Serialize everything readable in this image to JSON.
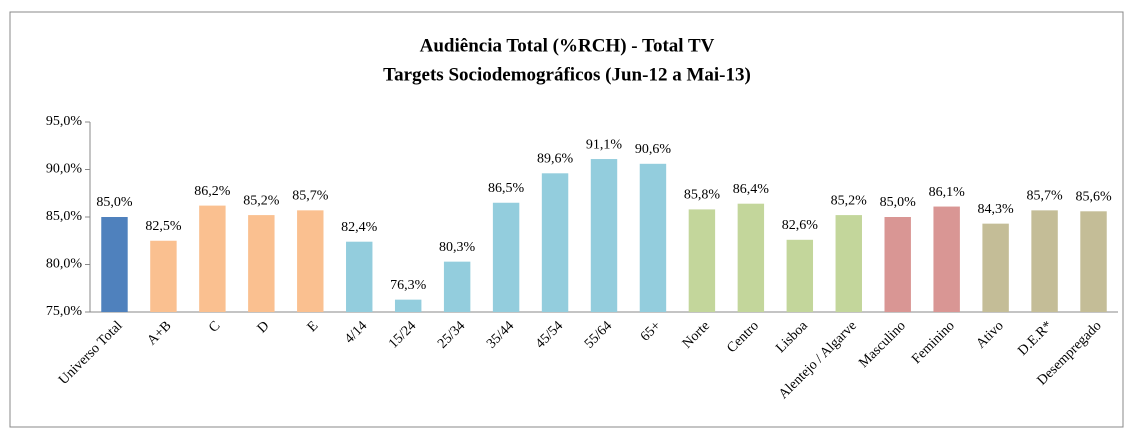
{
  "chart_data": {
    "type": "bar",
    "title": "Audiência Total (%RCH) - Total TV",
    "subtitle": "Targets Sociodemográficos  (Jun-12 a Mai-13)",
    "categories": [
      "Universo Total",
      "A+B",
      "C",
      "D",
      "E",
      "4/14",
      "15/24",
      "25/34",
      "35/44",
      "45/54",
      "55/64",
      "65+",
      "Norte",
      "Centro",
      "Lisboa",
      "Alentejo / Algarve",
      "Masculino",
      "Feminino",
      "Ativo",
      "D.E.R*",
      "Desempregado"
    ],
    "values": [
      85.0,
      82.5,
      86.2,
      85.2,
      85.7,
      82.4,
      76.3,
      80.3,
      86.5,
      89.6,
      91.1,
      90.6,
      85.8,
      86.4,
      82.6,
      85.2,
      85.0,
      86.1,
      84.3,
      85.7,
      85.6
    ],
    "value_labels": [
      "85,0%",
      "82,5%",
      "86,2%",
      "85,2%",
      "85,7%",
      "82,4%",
      "76,3%",
      "80,3%",
      "86,5%",
      "89,6%",
      "91,1%",
      "90,6%",
      "85,8%",
      "86,4%",
      "82,6%",
      "85,2%",
      "85,0%",
      "86,1%",
      "84,3%",
      "85,7%",
      "85,6%"
    ],
    "colors": [
      "#4f81bd",
      "#fac090",
      "#fac090",
      "#fac090",
      "#fac090",
      "#93cddd",
      "#93cddd",
      "#93cddd",
      "#93cddd",
      "#93cddd",
      "#93cddd",
      "#93cddd",
      "#c3d69b",
      "#c3d69b",
      "#c3d69b",
      "#c3d69b",
      "#d99694",
      "#d99694",
      "#c4bd97",
      "#c4bd97",
      "#c4bd97"
    ],
    "ylim": [
      75,
      95
    ],
    "yticks": [
      {
        "value": 75,
        "label": "75,0%"
      },
      {
        "value": 80,
        "label": "80,0%"
      },
      {
        "value": 85,
        "label": "85,0%"
      },
      {
        "value": 90,
        "label": "90,0%"
      },
      {
        "value": 95,
        "label": "95,0%"
      }
    ],
    "grid": false
  }
}
